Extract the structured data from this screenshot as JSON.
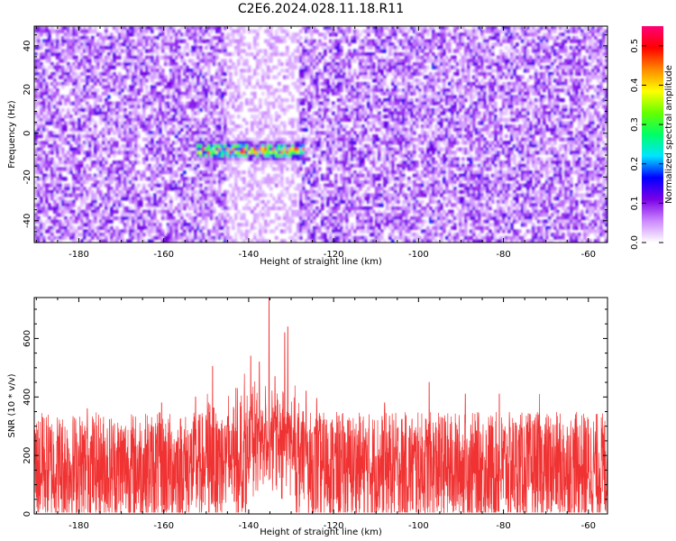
{
  "figure": {
    "title": "C2E6.2024.028.11.18.R11"
  },
  "chart_data": [
    {
      "type": "heatmap",
      "xlabel": "Height of straight line (km)",
      "ylabel": "Frequency (Hz)",
      "xlim": [
        -190.5,
        -55.5
      ],
      "ylim": [
        -50,
        49
      ],
      "xticks": [
        -180,
        -160,
        -140,
        -120,
        -100,
        -80,
        -60
      ],
      "yticks": [
        -40,
        -20,
        0,
        20,
        40
      ],
      "colorbar": {
        "label": "Normalized spectral amplitude",
        "range": [
          0.0,
          0.55
        ],
        "ticks": [
          0.0,
          0.1,
          0.2,
          0.3,
          0.4,
          0.5
        ],
        "colormap": [
          "#ffffff",
          "#cc88ff",
          "#7a00e6",
          "#0000ff",
          "#00e5ff",
          "#00ff66",
          "#66ff00",
          "#ffff00",
          "#ff8800",
          "#ff0000",
          "#ff0077"
        ]
      },
      "features": [
        {
          "x_range": [
            -152,
            -127
          ],
          "y_center": -8,
          "peak_amplitude": 0.5,
          "note": "strong signal cluster near 0 Hz"
        },
        {
          "x_range": [
            -145,
            -128
          ],
          "y_range": [
            -50,
            49
          ],
          "note": "depleted (whiter) vertical band"
        }
      ],
      "grid": false
    },
    {
      "type": "line",
      "xlabel": "Height of straight line (km)",
      "ylabel": "SNR (10 * v/v)",
      "xlim": [
        -190.5,
        -55.5
      ],
      "ylim": [
        0,
        740
      ],
      "xticks": [
        -180,
        -160,
        -140,
        -120,
        -100,
        -80,
        -60
      ],
      "yticks": [
        0,
        200,
        400,
        600
      ],
      "color": "#f03232",
      "baseline_range": [
        20,
        300
      ],
      "peaks": [
        {
          "x": -135.2,
          "y": 740
        },
        {
          "x": -130.8,
          "y": 640
        },
        {
          "x": -131.5,
          "y": 620
        },
        {
          "x": -139.5,
          "y": 540
        },
        {
          "x": -137.5,
          "y": 520
        },
        {
          "x": -148.5,
          "y": 505
        },
        {
          "x": -141.0,
          "y": 480
        },
        {
          "x": -133.8,
          "y": 470
        },
        {
          "x": -143.0,
          "y": 430
        },
        {
          "x": -126.5,
          "y": 420
        },
        {
          "x": -152.5,
          "y": 400
        },
        {
          "x": -124.0,
          "y": 395
        },
        {
          "x": -97.5,
          "y": 450
        },
        {
          "x": -89.0,
          "y": 410
        },
        {
          "x": -81.0,
          "y": 410
        },
        {
          "x": -71.5,
          "y": 410
        },
        {
          "x": -108.0,
          "y": 380
        },
        {
          "x": -178.0,
          "y": 360
        },
        {
          "x": -160.5,
          "y": 380
        },
        {
          "x": -63.0,
          "y": 340
        },
        {
          "x": -188.5,
          "y": 330
        }
      ],
      "grid": false
    }
  ]
}
